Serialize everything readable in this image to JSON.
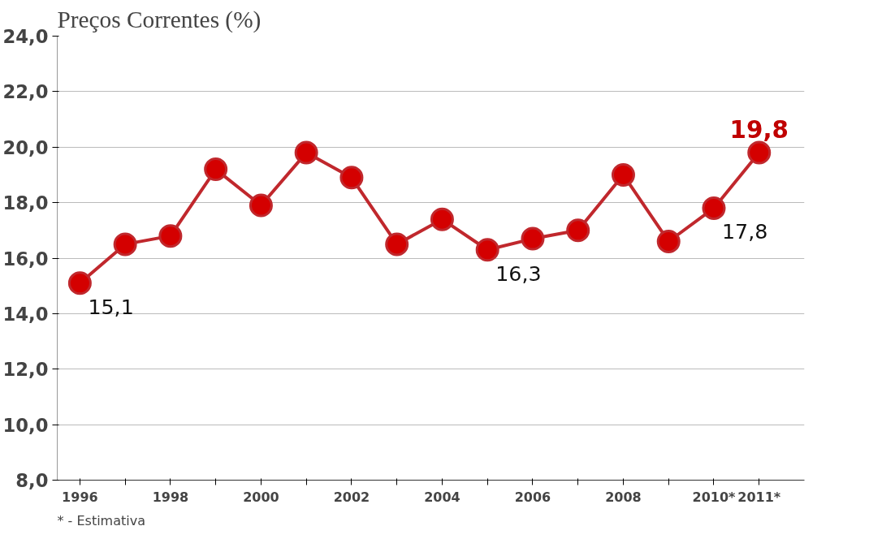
{
  "chart_data": {
    "type": "line",
    "title": "Preços Correntes (%)",
    "x": [
      1996,
      1997,
      1998,
      1999,
      2000,
      2001,
      2002,
      2003,
      2004,
      2005,
      2006,
      2007,
      2008,
      2009,
      2010,
      2011
    ],
    "series": [
      {
        "color": "#c0282d",
        "values": [
          15.1,
          16.5,
          16.8,
          19.2,
          17.9,
          19.8,
          18.9,
          16.5,
          17.4,
          16.3,
          16.7,
          17.0,
          19.0,
          16.6,
          17.8,
          19.8
        ],
        "value_labels": [
          "15,1",
          null,
          null,
          null,
          null,
          null,
          null,
          null,
          null,
          "16,3",
          null,
          null,
          null,
          null,
          "17,8",
          "19,8"
        ]
      }
    ],
    "xlim": [
      1995.5,
      2012
    ],
    "xticks": [
      1996,
      {
        "value": 1997,
        "label": null
      },
      1998,
      {
        "value": 1999,
        "label": null
      },
      2000,
      {
        "value": 2001,
        "label": null
      },
      2002,
      {
        "value": 2003,
        "label": null
      },
      2004,
      {
        "value": 2005,
        "label": null
      },
      2006,
      {
        "value": 2007,
        "label": null
      },
      2008,
      {
        "value": 2009,
        "label": null
      },
      {
        "value": 2010,
        "label": "2010*"
      },
      {
        "value": 2011,
        "label": "2011*"
      }
    ],
    "ylim": [
      8,
      24
    ],
    "yticks": [
      {
        "value": 8,
        "label": "8,0"
      },
      {
        "value": 10,
        "label": "10,0"
      },
      {
        "value": 12,
        "label": "12,0"
      },
      {
        "value": 14,
        "label": "14,0"
      },
      {
        "value": 16,
        "label": "16,0"
      },
      {
        "value": 18,
        "label": "18,0"
      },
      {
        "value": 20,
        "label": "20,0"
      },
      {
        "value": 22,
        "label": "22,0"
      },
      {
        "value": 24,
        "label": "24,0"
      }
    ],
    "grid": "y",
    "marker": "circle",
    "line_style": "solid",
    "annotations": [
      "* - Estimativa"
    ]
  }
}
